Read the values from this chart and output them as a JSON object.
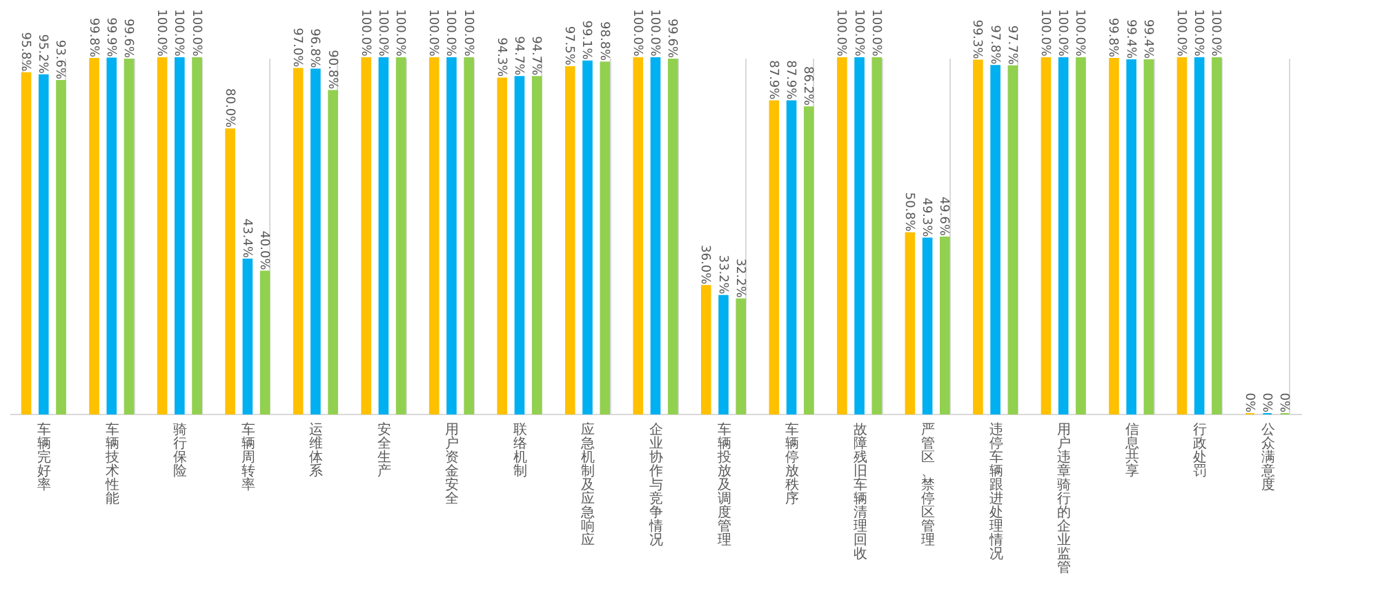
{
  "chart_data": {
    "type": "bar",
    "categories": [
      "车辆完好率",
      "车辆技术性能",
      "骑行保险",
      "车辆周转率",
      "运维体系",
      "安全生产",
      "用户资金安全",
      "联络机制",
      "应急机制及应急响应",
      "企业协作与竞争情况",
      "车辆投放及调度管理",
      "车辆停放秩序",
      "故障残旧车辆清理回收",
      "严管区、禁停区管理",
      "违停车辆跟进处理情况",
      "用户违章骑行的企业监管",
      "信息共享",
      "行政处罚",
      "公众满意度"
    ],
    "series": [
      {
        "color": "#ffc000",
        "values": [
          95.8,
          99.8,
          100.0,
          80.0,
          97.0,
          100.0,
          100.0,
          94.3,
          97.5,
          100.0,
          36.0,
          87.9,
          100.0,
          50.8,
          99.3,
          100.0,
          99.8,
          100.0,
          0
        ],
        "value_labels": [
          "95.8%",
          "99.8%",
          "100.0%",
          "80.0%",
          "97.0%",
          "100.0%",
          "100.0%",
          "94.3%",
          "97.5%",
          "100.0%",
          "36.0%",
          "87.9%",
          "100.0%",
          "50.8%",
          "99.3%",
          "100.0%",
          "99.8%",
          "100.0%",
          "0%"
        ]
      },
      {
        "color": "#00b0f0",
        "values": [
          95.2,
          99.9,
          100.0,
          43.4,
          96.8,
          100.0,
          100.0,
          94.7,
          99.1,
          100.0,
          33.2,
          87.9,
          100.0,
          49.3,
          97.8,
          100.0,
          99.4,
          100.0,
          0
        ],
        "value_labels": [
          "95.2%",
          "99.9%",
          "100.0%",
          "43.4%",
          "96.8%",
          "100.0%",
          "100.0%",
          "94.7%",
          "99.1%",
          "100.0%",
          "33.2%",
          "87.9%",
          "100.0%",
          "49.3%",
          "97.8%",
          "100.0%",
          "99.4%",
          "100.0%",
          "0%"
        ]
      },
      {
        "color": "#92d050",
        "values": [
          93.6,
          99.6,
          100.0,
          40.0,
          90.8,
          100.0,
          100.0,
          94.7,
          98.8,
          99.6,
          32.2,
          86.2,
          100.0,
          49.6,
          97.7,
          100.0,
          99.4,
          100.0,
          0
        ],
        "value_labels": [
          "93.6%",
          "99.6%",
          "100.0%",
          "40.0%",
          "90.8%",
          "100.0%",
          "100.0%",
          "94.7%",
          "98.8%",
          "99.6%",
          "32.2%",
          "86.2%",
          "100.0%",
          "49.6%",
          "97.7%",
          "100.0%",
          "99.4%",
          "100.0%",
          "0%"
        ]
      }
    ],
    "ylim": [
      0,
      100
    ],
    "grid": "x",
    "tick_labels": "x"
  }
}
